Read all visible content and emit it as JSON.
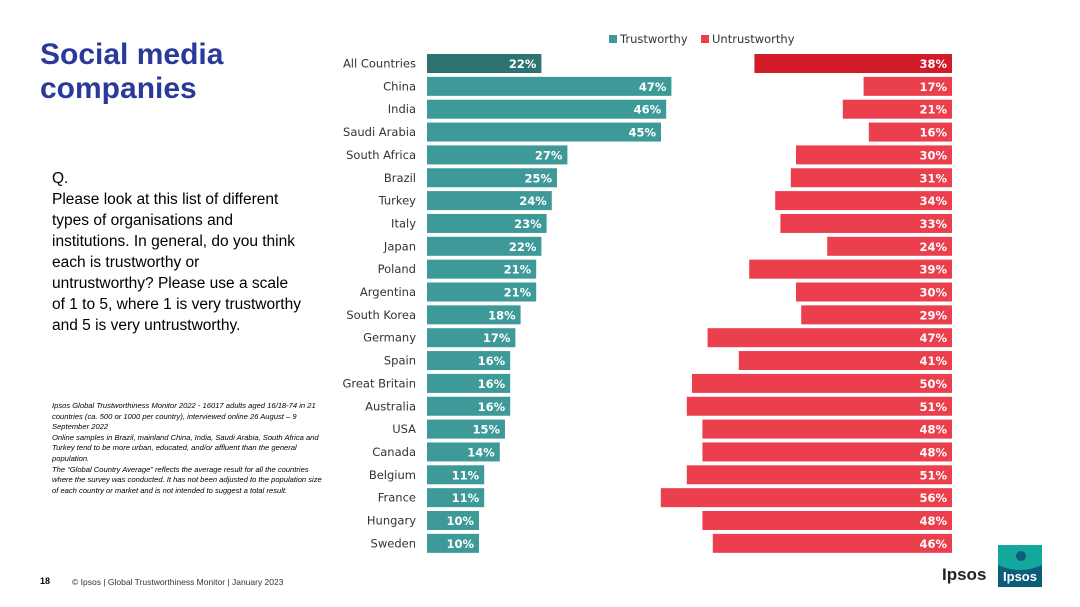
{
  "title": "Social media companies",
  "question": {
    "label": "Q.",
    "text": "Please look at this list of different types of organisations and institutions. In general, do you think each is trustworthy or untrustworthy? Please use a scale of 1 to 5, where 1 is very trustworthy and 5 is very untrustworthy."
  },
  "footnote": {
    "line1": "Ipsos Global Trustworthiness Monitor 2022 - 16017 adults aged 16/18-74 in 21 countries (ca. 500 or 1000 per country), interviewed online 26 August – 9 September 2022",
    "line2": "Online samples in Brazil, mainland China, India, Saudi Arabia, South Africa and Turkey tend to be more urban, educated, and/or affluent than the general population.",
    "line3": "The “Global Country Average” reflects the average result for all the countries where the survey was conducted. It has not been adjusted to the population size of each country or market and is not intended to suggest a total result."
  },
  "footer": {
    "page_number": "18",
    "copyright": "© Ipsos | Global Trustworthiness Monitor | January 2023",
    "brand": "Ipsos",
    "logo_text": "Ipsos"
  },
  "colors": {
    "title": "#2b3a9a",
    "trust": "#3d9a98",
    "trust_highlight": "#2c7371",
    "untrust": "#ec3f4d",
    "untrust_highlight": "#d11b29"
  },
  "chart_data": {
    "type": "bar",
    "orientation": "horizontal",
    "title": "",
    "legend": [
      "Trustworthy",
      "Untrustworthy"
    ],
    "legend_position": "top",
    "value_suffix": "%",
    "categories": [
      "All Countries",
      "China",
      "India",
      "Saudi Arabia",
      "South Africa",
      "Brazil",
      "Turkey",
      "Italy",
      "Japan",
      "Poland",
      "Argentina",
      "South Korea",
      "Germany",
      "Spain",
      "Great Britain",
      "Australia",
      "USA",
      "Canada",
      "Belgium",
      "France",
      "Hungary",
      "Sweden"
    ],
    "series": [
      {
        "name": "Trustworthy",
        "values": [
          22,
          47,
          46,
          45,
          27,
          25,
          24,
          23,
          22,
          21,
          21,
          18,
          17,
          16,
          16,
          16,
          15,
          14,
          11,
          11,
          10,
          10
        ]
      },
      {
        "name": "Untrustworthy",
        "values": [
          38,
          17,
          21,
          16,
          30,
          31,
          34,
          33,
          24,
          39,
          30,
          29,
          47,
          41,
          50,
          51,
          48,
          48,
          51,
          56,
          48,
          46
        ]
      }
    ],
    "highlight_category": "All Countries"
  }
}
